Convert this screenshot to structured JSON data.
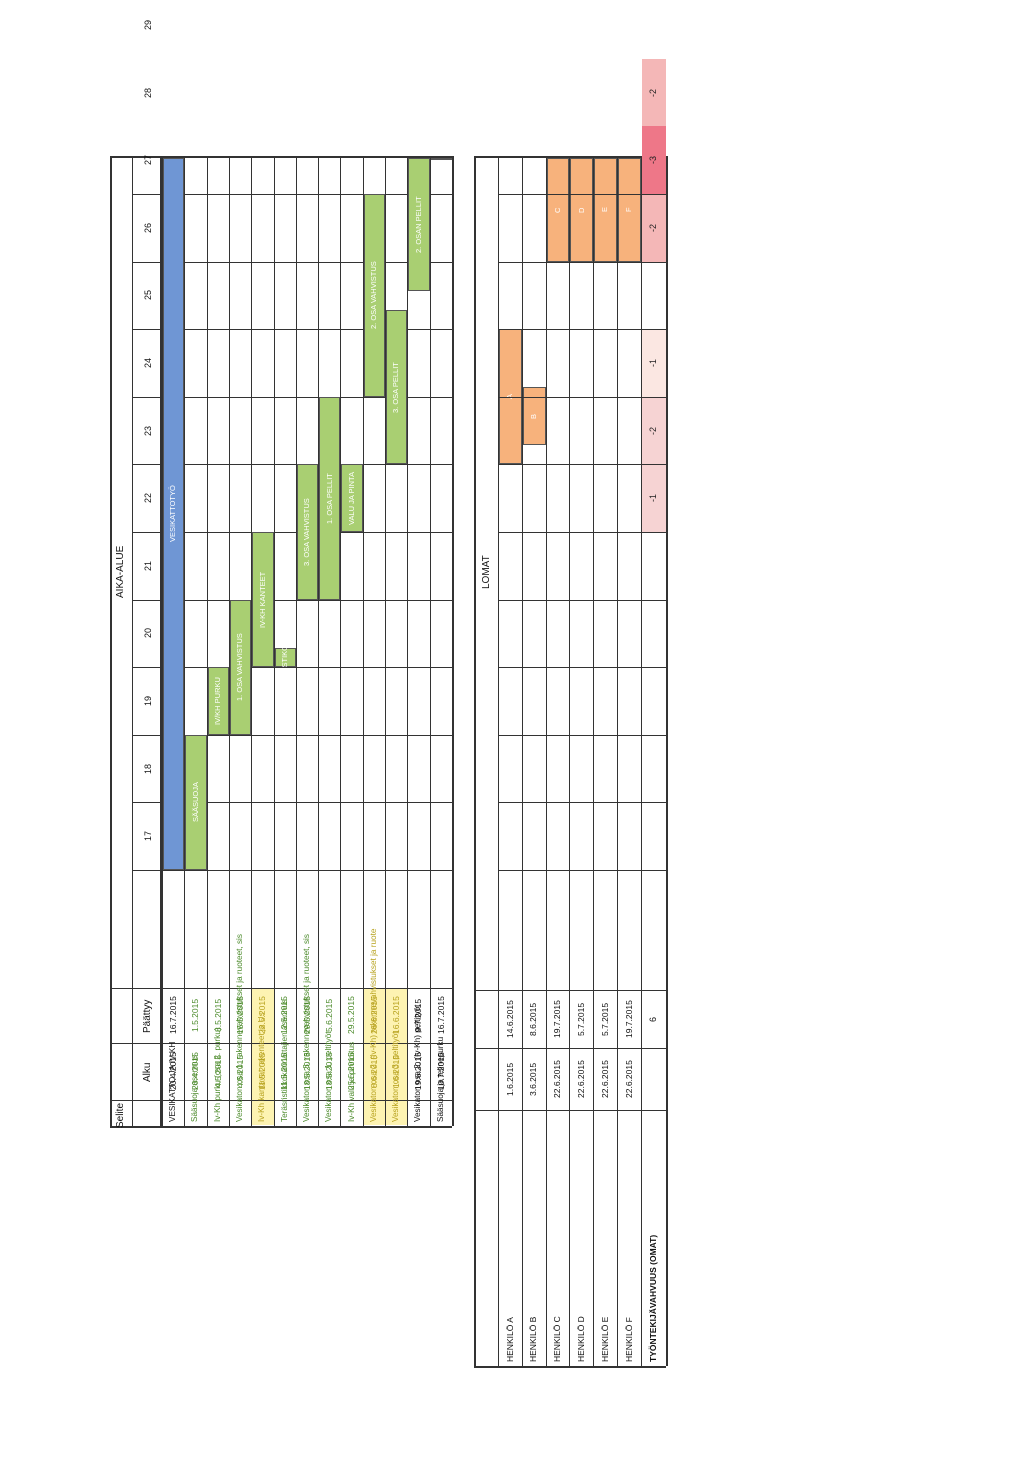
{
  "gantt": {
    "header": {
      "selite": "Selite",
      "alku": "Alku",
      "paattyy": "Päättyy",
      "aika_alue": "AIKA-ALUE"
    },
    "weeks": [
      "17",
      "18",
      "19",
      "20",
      "21",
      "22",
      "23",
      "24",
      "25",
      "26",
      "27",
      "28",
      "29"
    ],
    "rows": [
      {
        "label": "VESIKATTO JA IV-KH",
        "start": "20.4.2015",
        "end": "16.7.2015",
        "bar_label": "VESIKATTOTYÖ",
        "color": "#6f96d4",
        "text_color": "#111111"
      },
      {
        "label": "Sääsuoja asennus",
        "start": "20.4.2015",
        "end": "1.5.2015",
        "bar_label": "SÄÄSUOJA",
        "color": "#a9cf72",
        "text_color": "#4b8a2a"
      },
      {
        "label": "Iv-Kh purku (osa 2. purku)",
        "start": "4.5.2015",
        "end": "8.5.2015",
        "bar_label": "IV/KH PURKU",
        "color": "#a9cf72",
        "text_color": "#4b8a2a"
      },
      {
        "label": "Vesikaton osa 1. rakennevahvistukset ja ruoteet, sis",
        "start": "4.5.2015",
        "end": "15.5.2015",
        "bar_label": "1. OSA VAHVISTUS",
        "color": "#a9cf72",
        "text_color": "#4b8a2a"
      },
      {
        "label": "Iv-Kh kantavat rakenteet ja Us",
        "start": "11.5.2015",
        "end": "22.5.2015",
        "bar_label": "IV-KH KANTEET",
        "color": "#a9cf72",
        "text_color": "#b7a21e",
        "row_bg": "#fdf3b2"
      },
      {
        "label": "Teräsristikkokannattajien asennus",
        "start": "11.5.2015",
        "end": "12.5.2015",
        "bar_label": "RISTIKOT",
        "color": "#a9cf72",
        "text_color": "#4b8a2a"
      },
      {
        "label": "Vesikaton osa 3. rakennevahvistukset ja ruoteet, sis",
        "start": "18.5.2015",
        "end": "29.5.2015",
        "bar_label": "3. OSA VAHVISTUS",
        "color": "#a9cf72",
        "text_color": "#4b8a2a"
      },
      {
        "label": "Vesikaton osa 1. peltityöt",
        "start": "18.5.2015",
        "end": "5.6.2015",
        "bar_label": "1. OSA PELLIT",
        "color": "#a9cf72",
        "text_color": "#4b8a2a"
      },
      {
        "label": "Iv-Kh valu ja pinnoitus",
        "start": "25.5.2015",
        "end": "29.5.2015",
        "bar_label": "VALU JA PINTA",
        "color": "#a9cf72",
        "text_color": "#4b8a2a"
      },
      {
        "label": "Vesikaton osa 2. (Iv-Kh) rakennevahvistukset ja ruote",
        "start": "8.6.2015",
        "end": "26.6.2015",
        "bar_label": "2. OSA VAHVISTUS",
        "color": "#a9cf72",
        "text_color": "#b7a21e",
        "row_bg": "#fdf3b2"
      },
      {
        "label": "Vesikaton osa 3. peltityöt",
        "start": "1.6.2015",
        "end": "16.6.2015",
        "bar_label": "3. OSA PELLIT",
        "color": "#a9cf72",
        "text_color": "#b7a21e",
        "row_bg": "#fdf3b2"
      },
      {
        "label": "Vesikaton osa 2. (Iv-Kh) peltityöt",
        "start": "19.6.2015",
        "end": "9.7.2015",
        "bar_label": "2. OSAN PELLIT",
        "color": "#a9cf72",
        "text_color": "#111111"
      },
      {
        "label": "Sääsuoja ja telinepurku",
        "start": "10.7.2015",
        "end": "16.7.2015",
        "bar_label": "SÄÄSUOJA",
        "color": "#a9cf72",
        "text_color": "#111111"
      }
    ]
  },
  "holidays": {
    "title": "LOMAT",
    "rows": [
      {
        "label": "HENKILÖ A",
        "start": "1.6.2015",
        "end": "14.6.2015",
        "bar_label": "A"
      },
      {
        "label": "HENKILÖ B",
        "start": "3.6.2015",
        "end": "8.6.2015",
        "bar_label": "B"
      },
      {
        "label": "HENKILÖ C",
        "start": "22.6.2015",
        "end": "19.7.2015",
        "bar_label": "C"
      },
      {
        "label": "HENKILÖ D",
        "start": "22.6.2015",
        "end": "5.7.2015",
        "bar_label": "D"
      },
      {
        "label": "HENKILÖ E",
        "start": "22.6.2015",
        "end": "5.7.2015",
        "bar_label": "E"
      },
      {
        "label": "HENKILÖ F",
        "start": "22.6.2015",
        "end": "19.7.2015",
        "bar_label": "F"
      }
    ],
    "bar_color": "#f7b27c",
    "total": {
      "label": "TYÖNTEKIJÄVAHVUUS (OMAT)",
      "value": "6",
      "cells": [
        {
          "text": "-1",
          "color": "#f6d3d3"
        },
        {
          "text": "-2",
          "color": "#f6d3d3"
        },
        {
          "text": "-1",
          "color": "#fbe7e2"
        },
        {
          "text": "",
          "color": "#ffffff"
        },
        {
          "text": "-2",
          "color": "#f4b7b7"
        },
        {
          "text": "-3",
          "color": "#ee7788"
        },
        {
          "text": "-2",
          "color": "#f4b7b7"
        },
        {
          "text": "",
          "color": "#ffffff"
        }
      ]
    }
  }
}
